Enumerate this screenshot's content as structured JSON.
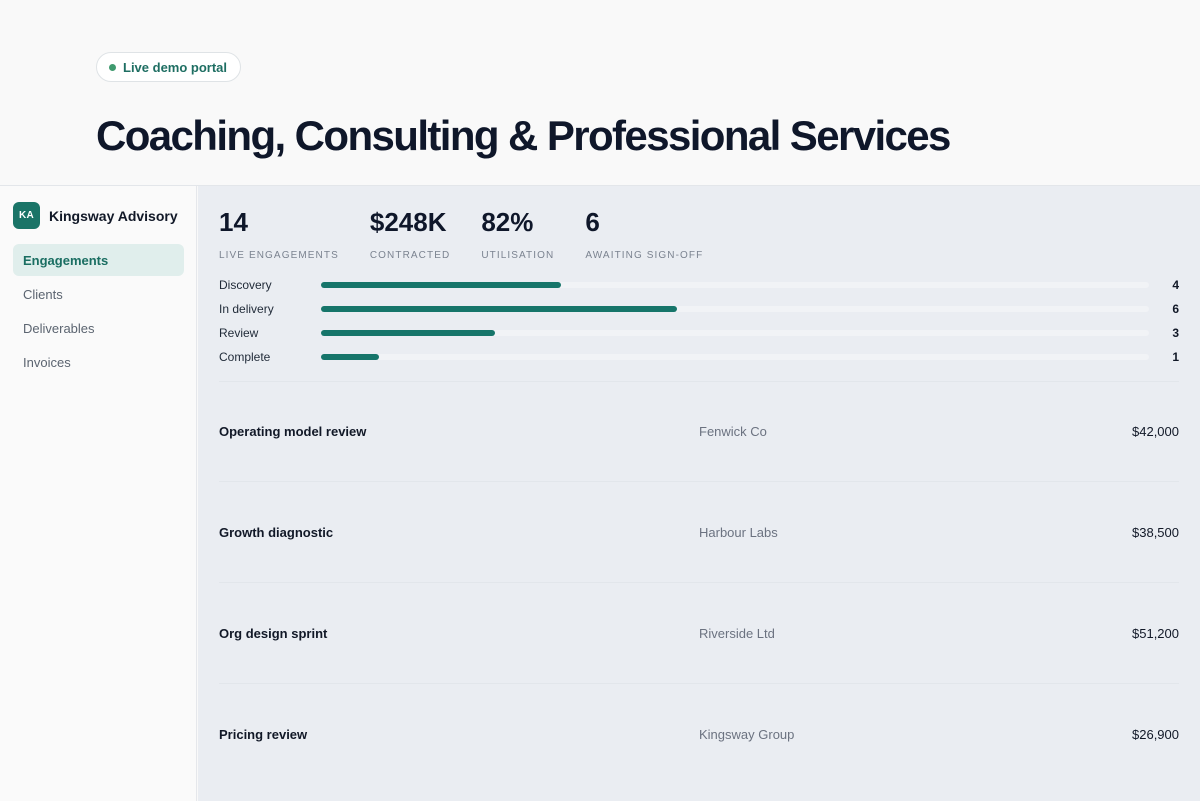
{
  "hero": {
    "badge": "Live demo portal",
    "title": "Coaching, Consulting & Professional Services"
  },
  "brand": {
    "initials": "KA",
    "name": "Kingsway Advisory"
  },
  "nav": [
    {
      "label": "Engagements",
      "active": true
    },
    {
      "label": "Clients",
      "active": false
    },
    {
      "label": "Deliverables",
      "active": false
    },
    {
      "label": "Invoices",
      "active": false
    }
  ],
  "stats": [
    {
      "value": "14",
      "label": "Live engagements"
    },
    {
      "value": "$248K",
      "label": "Contracted"
    },
    {
      "value": "82%",
      "label": "Utilisation"
    },
    {
      "value": "6",
      "label": "Awaiting sign-off"
    }
  ],
  "pipeline": [
    {
      "label": "Discovery",
      "count": 4,
      "fill": 0.29
    },
    {
      "label": "In delivery",
      "count": 6,
      "fill": 0.43
    },
    {
      "label": "Review",
      "count": 3,
      "fill": 0.21
    },
    {
      "label": "Complete",
      "count": 1,
      "fill": 0.07
    }
  ],
  "engagements": [
    {
      "name": "Operating model review",
      "client": "Fenwick Co",
      "amount": "$42,000"
    },
    {
      "name": "Growth diagnostic",
      "client": "Harbour Labs",
      "amount": "$38,500"
    },
    {
      "name": "Org design sprint",
      "client": "Riverside Ltd",
      "amount": "$51,200"
    },
    {
      "name": "Pricing review",
      "client": "Kingsway Group",
      "amount": "$26,900"
    }
  ],
  "colors": {
    "accent": "#16756a",
    "active_bg": "#e0eeec",
    "main_bg": "#eaedf2"
  }
}
